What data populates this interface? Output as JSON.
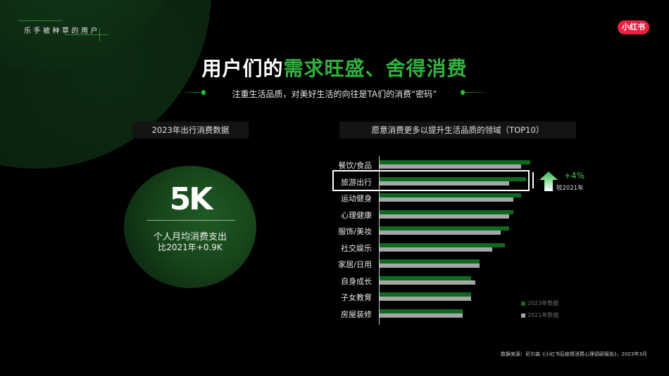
{
  "header": {
    "section_label": "乐手被种草的用户",
    "brand_badge": "小红书"
  },
  "title": {
    "part_white": "用户们的",
    "part_green": "需求旺盛、舍得消费"
  },
  "subtitle": "注重生活品质，对美好生活的向往是TA们的消费“密码”",
  "left_panel": {
    "heading": "2023年出行消费数据",
    "stat_value": "5K",
    "stat_caption": "个人月均消费支出",
    "stat_compare": "比2021年+0.9K"
  },
  "right_panel": {
    "heading": "愿意消费更多以提升生活品质的领域（TOP10）",
    "highlight": {
      "category": "旅游出行",
      "delta": "+4%",
      "delta_note": "较2021年"
    },
    "legend": {
      "series_2023": "2023年数据",
      "series_2021": "2021年数据"
    }
  },
  "colors": {
    "accent_green": "#2fb33d",
    "bar_2023": "#0f6a20",
    "bar_2021": "#a6a6a6",
    "brand_red": "#e8213f"
  },
  "chart_data": {
    "type": "bar",
    "orientation": "horizontal",
    "title": "愿意消费更多以提升生活品质的领域（TOP10）",
    "xlabel": "",
    "ylabel": "",
    "grid": false,
    "legend_position": "bottom-right",
    "categories": [
      "餐饮/食品",
      "旅游出行",
      "运动健身",
      "心理健康",
      "服饰/美妆",
      "社交娱乐",
      "家居/日用",
      "自身成长",
      "子女教育",
      "房屋装修"
    ],
    "series": [
      {
        "name": "2023年数据",
        "values": [
          214,
          208,
          201,
          190,
          184,
          178,
          142,
          130,
          130,
          118
        ]
      },
      {
        "name": "2021年数据",
        "values": [
          201,
          184,
          190,
          184,
          172,
          160,
          142,
          136,
          130,
          118
        ]
      }
    ],
    "value_units": "relative bar length (no axis ticks shown)",
    "annotations": [
      {
        "category": "旅游出行",
        "text": "+4% 较2021年"
      }
    ]
  },
  "footer": {
    "source": "数据来源：尼尔森《小红书后疫情消费心理调研报告》，2023年3月"
  }
}
